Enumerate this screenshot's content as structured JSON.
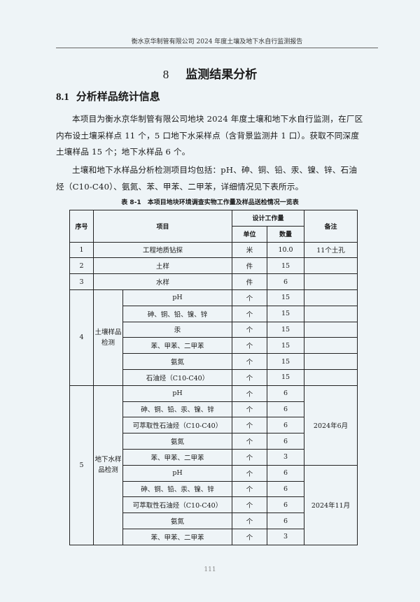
{
  "running_header": "衡水京华制管有限公司 2024 年度土壤及地下水自行监测报告",
  "chapter": {
    "number": "8",
    "title": "监测结果分析"
  },
  "section": {
    "number": "8.1",
    "title": "分析样品统计信息"
  },
  "paragraphs": [
    "本项目为衡水京华制管有限公司地块 2024 年度土壤和地下水自行监测，在厂区内布设土壤采样点 11 个，5 口地下水采样点（含背景监测井 1 口）。获取不同深度土壤样品 15 个；地下水样品 6 个。",
    "土壤和地下水样品分析检测项目均包括：pH、砷、铜、铅、汞、镍、锌、石油烃（C10-C40）、氨氮、苯、甲苯、二甲苯，详细情况见下表所示。"
  ],
  "table": {
    "caption": "表 8-1　本项目地块环境调查实物工作量及样品送检情况一览表",
    "headers": {
      "seq": "序号",
      "item": "项目",
      "design": "设计工作量",
      "unit": "单位",
      "quantity": "数量",
      "note": "备注"
    },
    "simple_rows": [
      {
        "seq": "1",
        "item": "工程地质钻探",
        "unit": "米",
        "quantity": "10.0",
        "note": "11个土孔"
      },
      {
        "seq": "2",
        "item": "土样",
        "unit": "件",
        "quantity": "15",
        "note": ""
      },
      {
        "seq": "3",
        "item": "水样",
        "unit": "件",
        "quantity": "6",
        "note": ""
      }
    ],
    "groups": [
      {
        "seq": "4",
        "name": "土壤样品检测",
        "notes": [
          {
            "text": "",
            "rows": [
              {
                "item": "pH",
                "unit": "个",
                "quantity": "15"
              },
              {
                "item": "砷、铜、铅、镍、锌",
                "unit": "个",
                "quantity": "15"
              },
              {
                "item": "汞",
                "unit": "个",
                "quantity": "15"
              },
              {
                "item": "苯、甲苯、二甲苯",
                "unit": "个",
                "quantity": "15"
              },
              {
                "item": "氨氮",
                "unit": "个",
                "quantity": "15"
              },
              {
                "item": "石油烃（C10-C40）",
                "unit": "个",
                "quantity": "15"
              }
            ]
          }
        ],
        "separate_notes": true
      },
      {
        "seq": "5",
        "name": "地下水样品检测",
        "notes": [
          {
            "text": "2024年6月",
            "rows": [
              {
                "item": "pH",
                "unit": "个",
                "quantity": "6"
              },
              {
                "item": "砷、铜、铅、汞、镍、锌",
                "unit": "个",
                "quantity": "6"
              },
              {
                "item": "可萃取性石油烃（C10-C40）",
                "unit": "个",
                "quantity": "6"
              },
              {
                "item": "氨氮",
                "unit": "个",
                "quantity": "6"
              },
              {
                "item": "苯、甲苯、二甲苯",
                "unit": "个",
                "quantity": "3"
              }
            ]
          },
          {
            "text": "2024年11月",
            "rows": [
              {
                "item": "pH",
                "unit": "个",
                "quantity": "6"
              },
              {
                "item": "砷、铜、铅、汞、镍、锌",
                "unit": "个",
                "quantity": "6"
              },
              {
                "item": "可萃取性石油烃（C10-C40）",
                "unit": "个",
                "quantity": "6"
              },
              {
                "item": "氨氮",
                "unit": "个",
                "quantity": "6"
              },
              {
                "item": "苯、甲苯、二甲苯",
                "unit": "个",
                "quantity": "3"
              }
            ]
          }
        ],
        "separate_notes": false
      }
    ]
  },
  "page_number": "111"
}
